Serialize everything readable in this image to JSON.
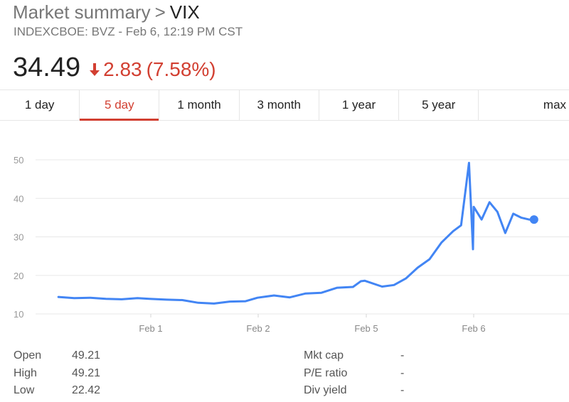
{
  "header": {
    "breadcrumb_root": "Market summary",
    "separator": ">",
    "symbol": "VIX",
    "subtitle": "INDEXCBOE: BVZ - Feb 6, 12:19 PM CST",
    "price": "34.49",
    "change": "2.83",
    "change_pct": "(7.58%)",
    "change_direction": "down",
    "colors": {
      "negative": "#d23f31",
      "line": "#4285f4"
    }
  },
  "tabs": [
    {
      "label": "1 day",
      "active": false
    },
    {
      "label": "5 day",
      "active": true
    },
    {
      "label": "1 month",
      "active": false
    },
    {
      "label": "3 month",
      "active": false
    },
    {
      "label": "1 year",
      "active": false
    },
    {
      "label": "5 year",
      "active": false
    },
    {
      "label": "max",
      "active": false
    }
  ],
  "chart_data": {
    "type": "line",
    "title": "",
    "xlabel": "",
    "ylabel": "",
    "ylim": [
      10,
      50
    ],
    "yticks": [
      10,
      20,
      30,
      40,
      50
    ],
    "xtick_labels": [
      "Feb 1",
      "Feb 2",
      "Feb 5",
      "Feb 6"
    ],
    "grid": true,
    "series": [
      {
        "x": [
          "Jan 31 09:30",
          "Jan 31 10:30",
          "Jan 31 11:30",
          "Jan 31 12:30",
          "Jan 31 13:30",
          "Jan 31 14:30",
          "Jan 31 15:15",
          "Feb 1 09:30",
          "Feb 1 10:30",
          "Feb 1 11:30",
          "Feb 1 12:30",
          "Feb 1 13:30",
          "Feb 1 14:30",
          "Feb 1 15:15",
          "Feb 2 09:30",
          "Feb 2 10:30",
          "Feb 2 11:30",
          "Feb 2 12:30",
          "Feb 2 13:30",
          "Feb 2 14:30",
          "Feb 2 15:00",
          "Feb 2 15:15",
          "Feb 5 09:30",
          "Feb 5 10:15",
          "Feb 5 11:00",
          "Feb 5 11:45",
          "Feb 5 12:30",
          "Feb 5 13:15",
          "Feb 5 14:00",
          "Feb 5 14:30",
          "Feb 5 15:00",
          "Feb 5 15:15",
          "Feb 6 08:30",
          "Feb 6 09:00",
          "Feb 6 09:30",
          "Feb 6 10:00",
          "Feb 6 10:30",
          "Feb 6 11:00",
          "Feb 6 11:30",
          "Feb 6 12:00",
          "Feb 6 12:19"
        ],
        "values": [
          14.4,
          14.1,
          14.2,
          13.9,
          13.8,
          14.1,
          13.9,
          13.7,
          13.6,
          12.9,
          12.7,
          13.2,
          13.3,
          14.2,
          14.8,
          14.3,
          15.3,
          15.5,
          16.8,
          17.0,
          18.5,
          18.6,
          17.1,
          17.5,
          19.2,
          22.0,
          24.2,
          28.5,
          31.5,
          33.0,
          49.21,
          26.8,
          37.8,
          34.5,
          39.0,
          36.5,
          31.0,
          36.0,
          35.0,
          34.49,
          34.49
        ]
      }
    ]
  },
  "stats": {
    "left": [
      {
        "label": "Open",
        "value": "49.21"
      },
      {
        "label": "High",
        "value": "49.21"
      },
      {
        "label": "Low",
        "value": "22.42"
      }
    ],
    "right": [
      {
        "label": "Mkt cap",
        "value": "-"
      },
      {
        "label": "P/E ratio",
        "value": "-"
      },
      {
        "label": "Div yield",
        "value": "-"
      }
    ]
  }
}
